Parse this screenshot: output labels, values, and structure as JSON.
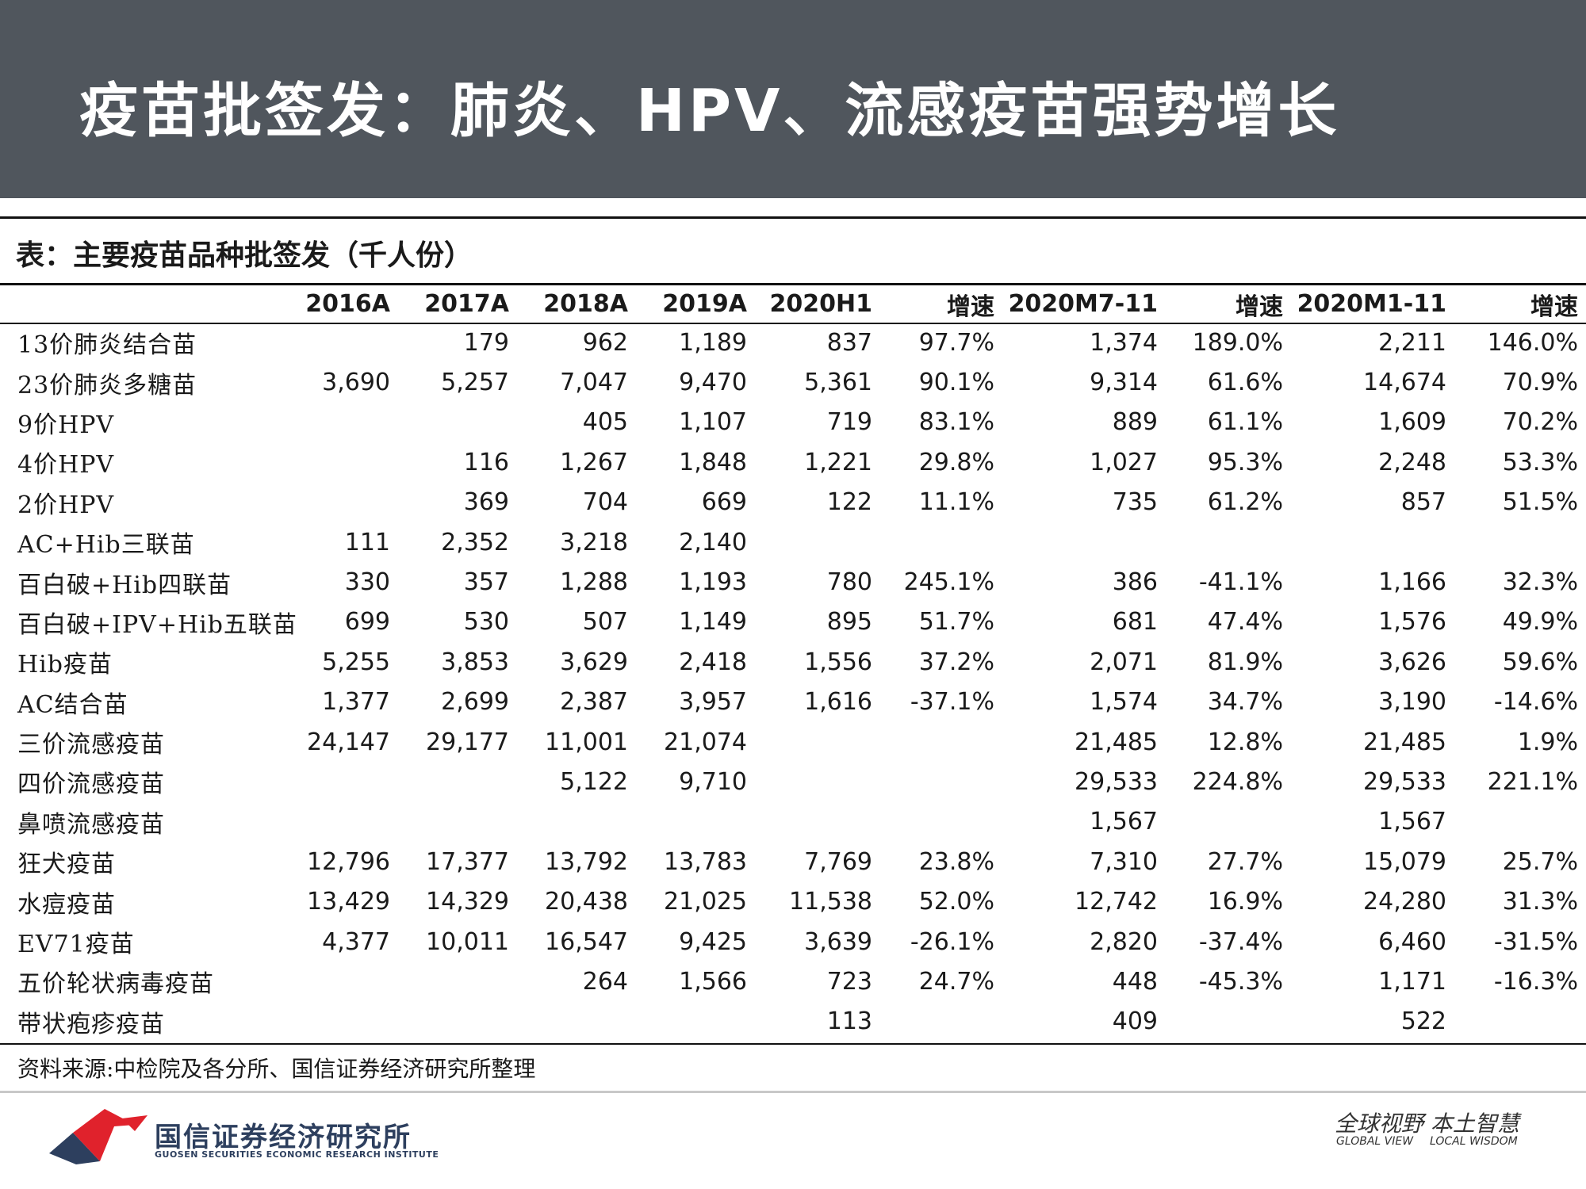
{
  "header": {
    "title": "疫苗批签发：肺炎、HPV、流感疫苗强势增长",
    "band_color": "#50565d"
  },
  "table": {
    "caption": "表：主要疫苗品种批签发（千人份）",
    "columns": [
      "",
      "2016A",
      "2017A",
      "2018A",
      "2019A",
      "2020H1",
      "增速",
      "2020M7-11",
      "增速",
      "2020M1-11",
      "增速"
    ],
    "rows": [
      [
        "13价肺炎结合苗",
        "",
        "179",
        "962",
        "1,189",
        "837",
        "97.7%",
        "1,374",
        "189.0%",
        "2,211",
        "146.0%"
      ],
      [
        "23价肺炎多糖苗",
        "3,690",
        "5,257",
        "7,047",
        "9,470",
        "5,361",
        "90.1%",
        "9,314",
        "61.6%",
        "14,674",
        "70.9%"
      ],
      [
        "9价HPV",
        "",
        "",
        "405",
        "1,107",
        "719",
        "83.1%",
        "889",
        "61.1%",
        "1,609",
        "70.2%"
      ],
      [
        "4价HPV",
        "",
        "116",
        "1,267",
        "1,848",
        "1,221",
        "29.8%",
        "1,027",
        "95.3%",
        "2,248",
        "53.3%"
      ],
      [
        "2价HPV",
        "",
        "369",
        "704",
        "669",
        "122",
        "11.1%",
        "735",
        "61.2%",
        "857",
        "51.5%"
      ],
      [
        "AC+Hib三联苗",
        "111",
        "2,352",
        "3,218",
        "2,140",
        "",
        "",
        "",
        "",
        "",
        ""
      ],
      [
        "百白破+Hib四联苗",
        "330",
        "357",
        "1,288",
        "1,193",
        "780",
        "245.1%",
        "386",
        "-41.1%",
        "1,166",
        "32.3%"
      ],
      [
        "百白破+IPV+Hib五联苗",
        "699",
        "530",
        "507",
        "1,149",
        "895",
        "51.7%",
        "681",
        "47.4%",
        "1,576",
        "49.9%"
      ],
      [
        "Hib疫苗",
        "5,255",
        "3,853",
        "3,629",
        "2,418",
        "1,556",
        "37.2%",
        "2,071",
        "81.9%",
        "3,626",
        "59.6%"
      ],
      [
        "AC结合苗",
        "1,377",
        "2,699",
        "2,387",
        "3,957",
        "1,616",
        "-37.1%",
        "1,574",
        "34.7%",
        "3,190",
        "-14.6%"
      ],
      [
        "三价流感疫苗",
        "24,147",
        "29,177",
        "11,001",
        "21,074",
        "",
        "",
        "21,485",
        "12.8%",
        "21,485",
        "1.9%"
      ],
      [
        "四价流感疫苗",
        "",
        "",
        "5,122",
        "9,710",
        "",
        "",
        "29,533",
        "224.8%",
        "29,533",
        "221.1%"
      ],
      [
        "鼻喷流感疫苗",
        "",
        "",
        "",
        "",
        "",
        "",
        "1,567",
        "",
        "1,567",
        ""
      ],
      [
        "狂犬疫苗",
        "12,796",
        "17,377",
        "13,792",
        "13,783",
        "7,769",
        "23.8%",
        "7,310",
        "27.7%",
        "15,079",
        "25.7%"
      ],
      [
        "水痘疫苗",
        "13,429",
        "14,329",
        "20,438",
        "21,025",
        "11,538",
        "52.0%",
        "12,742",
        "16.9%",
        "24,280",
        "31.3%"
      ],
      [
        "EV71疫苗",
        "4,377",
        "10,011",
        "16,547",
        "9,425",
        "3,639",
        "-26.1%",
        "2,820",
        "-37.4%",
        "6,460",
        "-31.5%"
      ],
      [
        "五价轮状病毒疫苗",
        "",
        "",
        "264",
        "1,566",
        "723",
        "24.7%",
        "448",
        "-45.3%",
        "1,171",
        "-16.3%"
      ],
      [
        "带状疱疹疫苗",
        "",
        "",
        "",
        "",
        "113",
        "",
        "409",
        "",
        "522",
        ""
      ]
    ]
  },
  "source_note": "资料来源:中检院及各分所、国信证券经济研究所整理",
  "footer": {
    "logo_cn": "国信证券经济研究所",
    "logo_en": "GUOSEN SECURITIES ECONOMIC RESEARCH INSTITUTE",
    "slogan_cn": "全球视野 本土智慧",
    "slogan_en_1": "GLOBAL VIEW",
    "slogan_en_2": "LOCAL WISDOM",
    "logo_colors": {
      "red": "#e0222c",
      "navy": "#2d3f5e"
    }
  }
}
